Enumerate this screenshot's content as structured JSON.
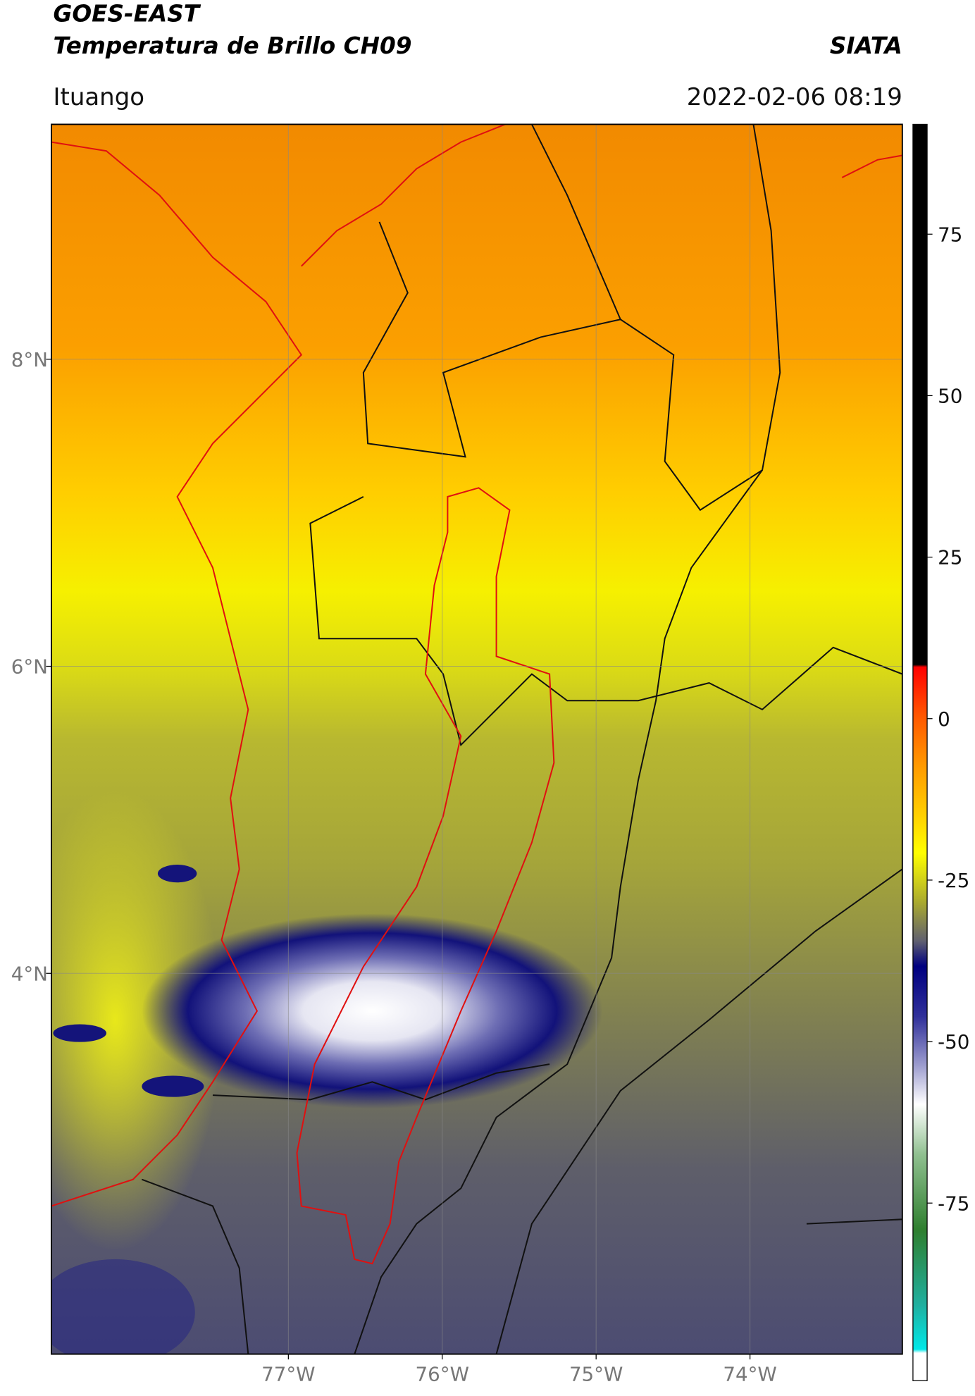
{
  "header": {
    "title": "GOES-EAST",
    "subtitle": "Temperatura de Brillo CH09",
    "source": "SIATA",
    "location": "Ituango",
    "datetime": "2022-02-06 08:19"
  },
  "map": {
    "xlim": [
      -78.54,
      -73.01
    ],
    "ylim": [
      1.52,
      9.53
    ],
    "xticks": [
      {
        "value": -77,
        "label": "77°W"
      },
      {
        "value": -76,
        "label": "76°W"
      },
      {
        "value": -75,
        "label": "75°W"
      },
      {
        "value": -74,
        "label": "74°W"
      }
    ],
    "yticks": [
      {
        "value": 8,
        "label": "8°N"
      },
      {
        "value": 6,
        "label": "6°N"
      },
      {
        "value": 4,
        "label": "4°N"
      }
    ],
    "grid": true
  },
  "colorbar": {
    "lim": [
      -102.5,
      92
    ],
    "ticks": [
      75,
      50,
      25,
      0,
      -25,
      -50,
      -75
    ]
  }
}
